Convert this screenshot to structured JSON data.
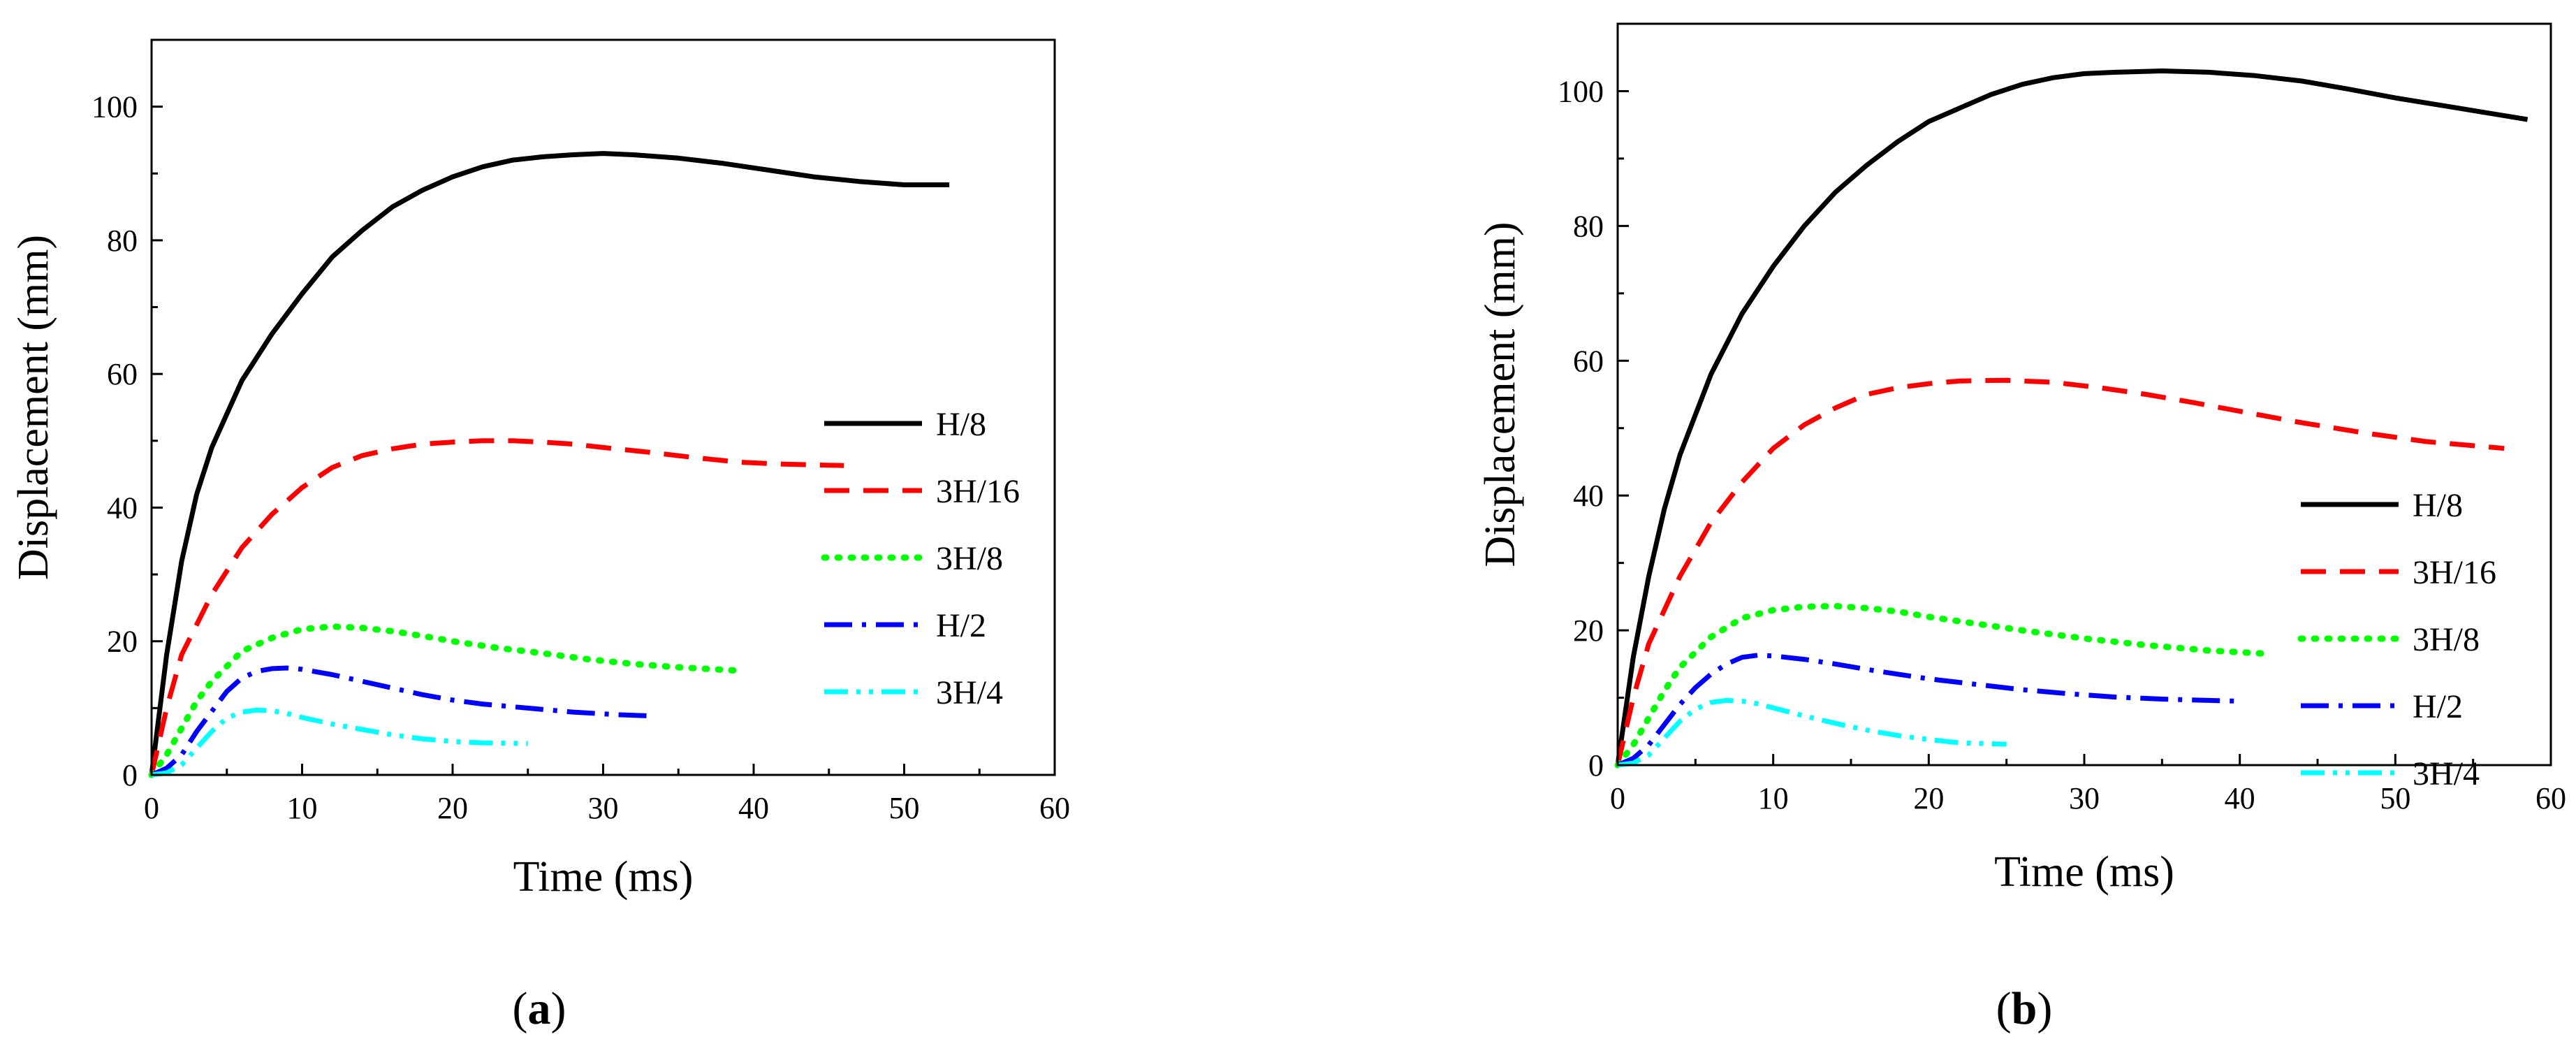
{
  "figure": {
    "panels": [
      {
        "prefix": "(",
        "letter": "a",
        "suffix": ")"
      },
      {
        "prefix": "(",
        "letter": "b",
        "suffix": ")"
      }
    ]
  },
  "chart_data": [
    {
      "type": "line",
      "panel": "a",
      "title": "",
      "xlabel": "Time (ms)",
      "ylabel": "Displacement (mm)",
      "xlim": [
        0,
        60
      ],
      "ylim": [
        0,
        110
      ],
      "xticks": [
        0,
        10,
        20,
        30,
        40,
        50,
        60
      ],
      "yticks": [
        0,
        20,
        40,
        60,
        80,
        100
      ],
      "grid": false,
      "legend_position": "right",
      "series": [
        {
          "name": "H/8",
          "color": "#000000",
          "style": "solid",
          "x": [
            0,
            1,
            2,
            3,
            4,
            6,
            8,
            10,
            12,
            14,
            16,
            18,
            20,
            22,
            24,
            26,
            28,
            30,
            32,
            35,
            38,
            41,
            44,
            47,
            50,
            53
          ],
          "y": [
            0,
            18,
            32,
            42,
            49,
            59,
            66,
            72,
            77.5,
            81.5,
            85,
            87.5,
            89.5,
            91,
            92,
            92.5,
            92.8,
            93,
            92.8,
            92.3,
            91.5,
            90.5,
            89.5,
            88.8,
            88.3,
            88.3
          ]
        },
        {
          "name": "3H/16",
          "color": "#ff0000",
          "style": "dash",
          "x": [
            0,
            1,
            2,
            4,
            6,
            8,
            10,
            12,
            14,
            16,
            18,
            20,
            22,
            24,
            26,
            28,
            30,
            33,
            36,
            39,
            42,
            46
          ],
          "y": [
            0,
            10,
            18,
            27,
            34,
            39,
            43,
            46,
            47.8,
            48.8,
            49.5,
            49.8,
            50,
            50,
            49.8,
            49.5,
            49,
            48.3,
            47.5,
            46.8,
            46.5,
            46.3
          ]
        },
        {
          "name": "3H/8",
          "color": "#00ff00",
          "style": "dot",
          "x": [
            0,
            1,
            2,
            3,
            4,
            6,
            8,
            10,
            12,
            14,
            16,
            18,
            20,
            23,
            26,
            29,
            32,
            35,
            39
          ],
          "y": [
            0,
            3,
            7,
            11,
            14,
            18.5,
            20.5,
            21.8,
            22.2,
            22,
            21.5,
            20.8,
            20,
            19,
            18.2,
            17.3,
            16.6,
            16.1,
            15.6
          ]
        },
        {
          "name": "H/2",
          "color": "#0000ff",
          "style": "dashdot",
          "x": [
            0,
            1,
            2,
            3,
            4,
            5,
            6,
            7,
            8,
            9,
            10,
            12,
            14,
            16,
            18,
            20,
            22,
            25,
            28,
            31,
            33.5
          ],
          "y": [
            0,
            1,
            3,
            6.5,
            9.5,
            12.5,
            14.5,
            15.5,
            15.9,
            16,
            15.8,
            15,
            14,
            13,
            12,
            11.2,
            10.6,
            10,
            9.4,
            9,
            8.8
          ]
        },
        {
          "name": "3H/4",
          "color": "#00ffff",
          "style": "dashdotdot",
          "x": [
            0,
            1,
            2,
            3,
            4,
            5,
            6,
            7,
            8,
            9,
            10,
            12,
            14,
            16,
            18,
            20,
            22,
            25
          ],
          "y": [
            0,
            0.3,
            1.5,
            4,
            6.5,
            8.5,
            9.4,
            9.7,
            9.6,
            9.2,
            8.6,
            7.6,
            6.8,
            6,
            5.4,
            5,
            4.8,
            4.7
          ]
        }
      ]
    },
    {
      "type": "line",
      "panel": "b",
      "title": "",
      "xlabel": "Time (ms)",
      "ylabel": "Displacement (mm)",
      "xlim": [
        0,
        60
      ],
      "ylim": [
        0,
        110
      ],
      "xticks": [
        0,
        10,
        20,
        30,
        40,
        50,
        60
      ],
      "yticks": [
        0,
        20,
        40,
        60,
        80,
        100
      ],
      "grid": false,
      "legend_position": "right",
      "series": [
        {
          "name": "H/8",
          "color": "#000000",
          "style": "solid",
          "x": [
            0,
            1,
            2,
            3,
            4,
            6,
            8,
            10,
            12,
            14,
            16,
            18,
            20,
            22,
            24,
            26,
            28,
            30,
            32,
            35,
            38,
            41,
            44,
            47,
            50,
            54,
            58.5
          ],
          "y": [
            0,
            16,
            28,
            38,
            46,
            58,
            67,
            74,
            80,
            85,
            89,
            92.5,
            95.5,
            97.5,
            99.5,
            101,
            102,
            102.6,
            102.8,
            103,
            102.8,
            102.3,
            101.5,
            100.3,
            99,
            97.5,
            95.8
          ]
        },
        {
          "name": "3H/16",
          "color": "#ff0000",
          "style": "dash",
          "x": [
            0,
            1,
            2,
            4,
            6,
            8,
            10,
            12,
            14,
            16,
            18,
            20,
            22,
            25,
            28,
            31,
            34,
            37,
            40,
            44,
            48,
            52,
            57
          ],
          "y": [
            0,
            10,
            18,
            28,
            36,
            42,
            47,
            50.5,
            53,
            55,
            56,
            56.6,
            57,
            57.1,
            56.8,
            56,
            55,
            53.8,
            52.5,
            50.8,
            49.3,
            48,
            47
          ]
        },
        {
          "name": "3H/8",
          "color": "#00ff00",
          "style": "dot",
          "x": [
            0,
            1,
            2,
            3,
            4,
            6,
            8,
            10,
            12,
            14,
            16,
            18,
            20,
            23,
            26,
            30,
            34,
            38,
            42
          ],
          "y": [
            0,
            3,
            7,
            11,
            14.5,
            19,
            21.8,
            23,
            23.5,
            23.6,
            23.3,
            22.8,
            22,
            21,
            20,
            18.8,
            17.8,
            17,
            16.5
          ]
        },
        {
          "name": "H/2",
          "color": "#0000ff",
          "style": "dashdot",
          "x": [
            0,
            1,
            2,
            3,
            4,
            5,
            6,
            7,
            8,
            9,
            10,
            12,
            14,
            16,
            18,
            20,
            23,
            26,
            29,
            32,
            35,
            38,
            40
          ],
          "y": [
            0,
            1,
            3,
            6,
            9,
            11.5,
            13.5,
            15,
            16,
            16.3,
            16.2,
            15.7,
            15,
            14.2,
            13.5,
            12.8,
            12,
            11.2,
            10.6,
            10.1,
            9.8,
            9.6,
            9.5
          ]
        },
        {
          "name": "3H/4",
          "color": "#00ffff",
          "style": "dashdotdot",
          "x": [
            0,
            1,
            2,
            3,
            4,
            5,
            6,
            7,
            8,
            9,
            10,
            12,
            14,
            16,
            18,
            20,
            22,
            25
          ],
          "y": [
            0,
            0.3,
            1.5,
            4,
            6.5,
            8.3,
            9.3,
            9.6,
            9.5,
            9.1,
            8.5,
            7.3,
            6.2,
            5.2,
            4.4,
            3.8,
            3.3,
            3.1
          ]
        }
      ]
    }
  ]
}
